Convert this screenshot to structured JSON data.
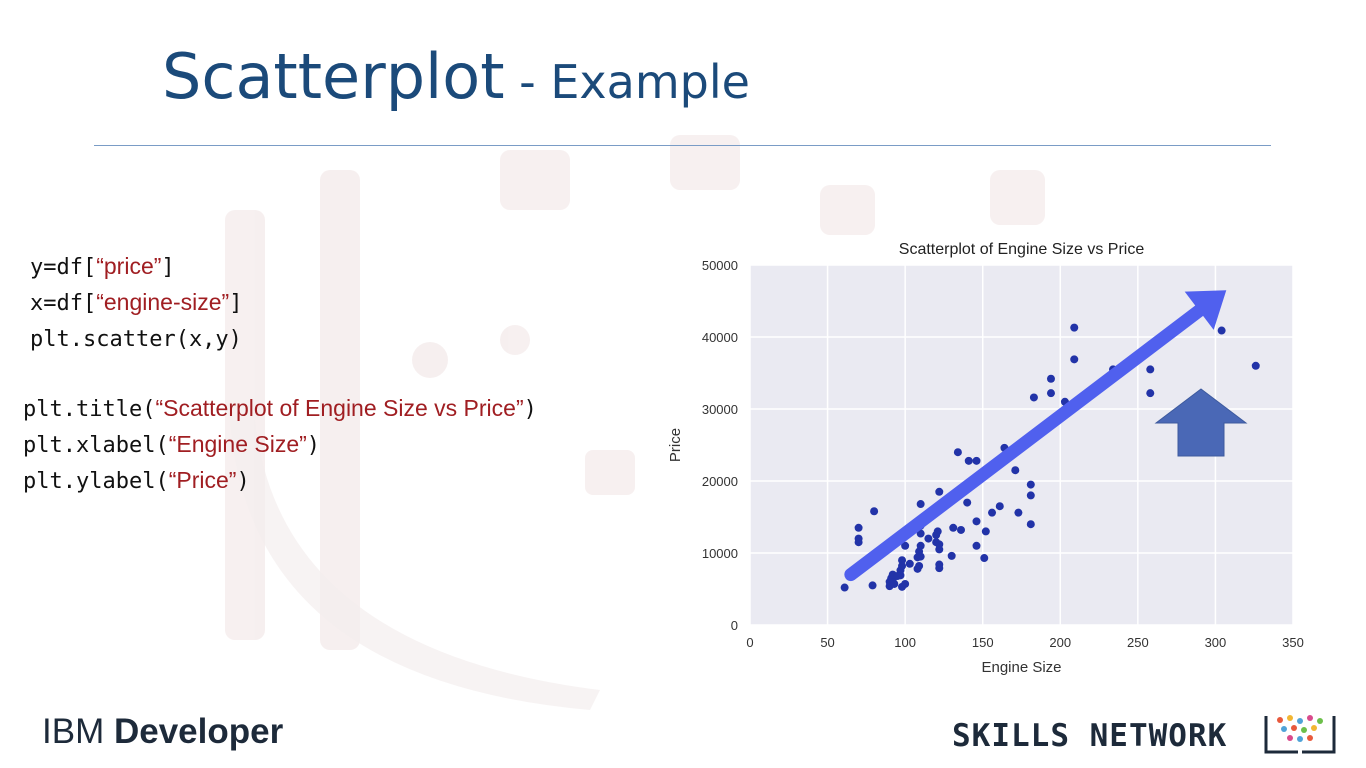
{
  "slide": {
    "title_main": "Scatterplot",
    "title_sub": " - Example"
  },
  "code": {
    "block1": [
      {
        "prefix": "y=df[",
        "str": "“price”",
        "suffix": "]"
      },
      {
        "prefix": "x=df[",
        "str": "“engine-size”",
        "suffix": "]"
      },
      {
        "prefix": "plt.scatter(x,y)",
        "str": "",
        "suffix": ""
      }
    ],
    "block2": [
      {
        "prefix": "plt.title(",
        "str": "“Scatterplot of Engine Size vs Price”",
        "suffix": ")"
      },
      {
        "prefix": "plt.xlabel(",
        "str": "“Engine Size”",
        "suffix": ")"
      },
      {
        "prefix": "plt.ylabel(",
        "str": "“Price”",
        "suffix": ")"
      }
    ]
  },
  "footer": {
    "ibm": "IBM",
    "developer": "Developer",
    "skills_network": "SKILLS NETWORK"
  },
  "colors": {
    "title": "#1b4a7a",
    "code_string": "#a01e22",
    "plot_bg": "#eaeaf2",
    "point": "#2233a8",
    "arrow": "#5060ee",
    "up_arrow": "#4a68b6"
  },
  "chart_data": {
    "type": "scatter",
    "title": "Scatterplot of Engine Size vs Price",
    "xlabel": "Engine Size",
    "ylabel": "Price",
    "xlim": [
      0,
      350
    ],
    "ylim": [
      0,
      50000
    ],
    "xticks": [
      0,
      50,
      100,
      150,
      200,
      250,
      300,
      350
    ],
    "yticks": [
      0,
      10000,
      20000,
      30000,
      40000,
      50000
    ],
    "grid": true,
    "points": [
      [
        61,
        5200
      ],
      [
        70,
        13500
      ],
      [
        70,
        12000
      ],
      [
        70,
        11500
      ],
      [
        79,
        5500
      ],
      [
        80,
        15800
      ],
      [
        90,
        6000
      ],
      [
        90,
        5400
      ],
      [
        91,
        6500
      ],
      [
        92,
        6300
      ],
      [
        92,
        7000
      ],
      [
        93,
        5700
      ],
      [
        97,
        6900
      ],
      [
        97,
        7600
      ],
      [
        98,
        8200
      ],
      [
        98,
        5300
      ],
      [
        98,
        9000
      ],
      [
        103,
        8500
      ],
      [
        108,
        7800
      ],
      [
        108,
        9400
      ],
      [
        109,
        8200
      ],
      [
        109,
        10200
      ],
      [
        110,
        11000
      ],
      [
        110,
        12700
      ],
      [
        110,
        16800
      ],
      [
        110,
        13800
      ],
      [
        110,
        9500
      ],
      [
        120,
        11500
      ],
      [
        120,
        12500
      ],
      [
        121,
        13000
      ],
      [
        122,
        7900
      ],
      [
        122,
        8400
      ],
      [
        122,
        10500
      ],
      [
        122,
        11200
      ],
      [
        122,
        16500
      ],
      [
        122,
        18500
      ],
      [
        130,
        9600
      ],
      [
        131,
        13500
      ],
      [
        131,
        17500
      ],
      [
        134,
        24000
      ],
      [
        136,
        13200
      ],
      [
        140,
        17000
      ],
      [
        141,
        22800
      ],
      [
        141,
        19000
      ],
      [
        146,
        22800
      ],
      [
        146,
        14400
      ],
      [
        146,
        11000
      ],
      [
        151,
        9300
      ],
      [
        152,
        13000
      ],
      [
        156,
        15600
      ],
      [
        161,
        16500
      ],
      [
        164,
        24600
      ],
      [
        171,
        21500
      ],
      [
        173,
        15600
      ],
      [
        181,
        18000
      ],
      [
        181,
        19500
      ],
      [
        181,
        14000
      ],
      [
        183,
        31600
      ],
      [
        194,
        32200
      ],
      [
        194,
        34200
      ],
      [
        203,
        31000
      ],
      [
        209,
        41300
      ],
      [
        209,
        36900
      ],
      [
        234,
        35500
      ],
      [
        258,
        32200
      ],
      [
        258,
        35500
      ],
      [
        304,
        40900
      ],
      [
        326,
        36000
      ],
      [
        100,
        5700
      ],
      [
        100,
        11000
      ],
      [
        95,
        6800
      ],
      [
        115,
        12000
      ]
    ],
    "annotations": [
      "trend arrow pointing up-right",
      "upward block arrow"
    ]
  }
}
